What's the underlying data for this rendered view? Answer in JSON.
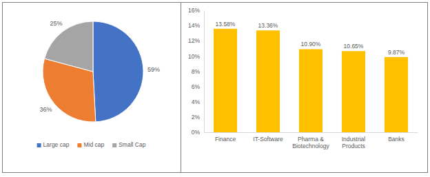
{
  "chart_data": [
    {
      "type": "pie",
      "categories": [
        "Large cap",
        "Mid cap",
        "Small Cap"
      ],
      "values": [
        59,
        36,
        25
      ],
      "value_labels": [
        "59%",
        "36%",
        "25%"
      ],
      "colors": [
        "#4472c4",
        "#ed7d31",
        "#a5a5a5"
      ],
      "legend": "bottom",
      "data_labels": true
    },
    {
      "type": "bar",
      "categories": [
        "Finance",
        "IT-Software",
        "Pharma & Biotechnology",
        "Industrial Products",
        "Banks"
      ],
      "values": [
        13.58,
        13.36,
        10.9,
        10.65,
        9.87
      ],
      "value_labels": [
        "13.58%",
        "13.36%",
        "10.90%",
        "10.65%",
        "9.87%"
      ],
      "color": "#ffc000",
      "ylim": [
        0,
        16
      ],
      "yticks": [
        {
          "value": 0,
          "label": "0%"
        },
        {
          "value": 2,
          "label": "2%"
        },
        {
          "value": 4,
          "label": "4%"
        },
        {
          "value": 6,
          "label": "6%"
        },
        {
          "value": 8,
          "label": "8%"
        },
        {
          "value": 10,
          "label": "10%"
        },
        {
          "value": 12,
          "label": "12%"
        },
        {
          "value": 14,
          "label": "14%"
        },
        {
          "value": 16,
          "label": "16%"
        }
      ],
      "grid": false,
      "data_labels": true
    }
  ]
}
